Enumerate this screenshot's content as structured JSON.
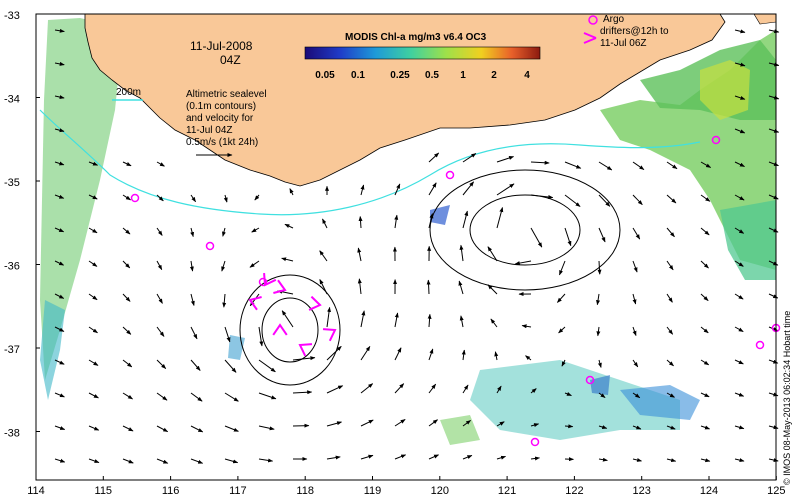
{
  "map": {
    "date": "11-Jul-2008",
    "time": "04Z",
    "colorbar_title": "MODIS Chl-a mg/m3 v6.4 OC3",
    "colorbar_ticks": [
      "0.05",
      "0.1",
      "0.25",
      "0.5",
      "1",
      "2",
      "4"
    ],
    "isobath_label": "200m",
    "sealevel_note": [
      "Altimetric sealevel",
      "(0.1m contours)",
      "and velocity for",
      "11-Jul 04Z",
      "0.5m/s (1kt 24h)"
    ],
    "argo_legend": [
      "Argo",
      "drifters@12h to",
      "11-Jul 06Z"
    ],
    "credit": "© IMOS 08-May-2013 06:02:34 Hobart time",
    "x_ticks": [
      "114",
      "115",
      "116",
      "117",
      "118",
      "119",
      "120",
      "121",
      "122",
      "123",
      "124",
      "125"
    ],
    "y_ticks": [
      "-33",
      "-34",
      "-35",
      "-36",
      "-37",
      "-38"
    ],
    "colors": {
      "land": "#f9c898",
      "isobath": "#40e0e0",
      "argo": "#ff00ff",
      "drifter": "#ff00ff"
    }
  }
}
